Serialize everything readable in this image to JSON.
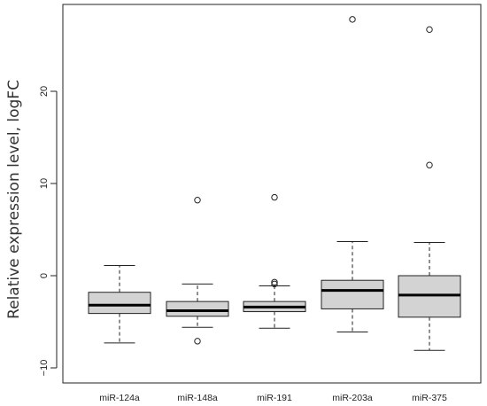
{
  "chart_data": {
    "type": "boxplot",
    "title": "",
    "xlabel": "",
    "ylabel": "Relative expression level, logFC",
    "ylim": [
      -11,
      29
    ],
    "yticks": [
      -10,
      0,
      10,
      20
    ],
    "y_tick_labels": [
      "−10",
      "0",
      "10",
      "20"
    ],
    "grid": false,
    "box_color": "#d3d3d3",
    "categories": [
      "miR-124a",
      "miR-148a",
      "miR-191",
      "miR-203a",
      "miR-375"
    ],
    "series": [
      {
        "min": -7.3,
        "q1": -4.1,
        "median": -3.2,
        "q3": -1.8,
        "max": 1.1,
        "outliers": []
      },
      {
        "min": -5.6,
        "q1": -4.4,
        "median": -3.8,
        "q3": -2.8,
        "max": -0.9,
        "outliers": [
          8.2,
          -7.1
        ]
      },
      {
        "min": -5.7,
        "q1": -3.9,
        "median": -3.4,
        "q3": -2.8,
        "max": -1.1,
        "outliers": [
          8.5,
          -0.7,
          -0.9
        ]
      },
      {
        "min": -6.1,
        "q1": -3.6,
        "median": -1.6,
        "q3": -0.5,
        "max": 3.7,
        "outliers": [
          27.8
        ]
      },
      {
        "min": -8.1,
        "q1": -4.5,
        "median": -2.1,
        "q3": 0.0,
        "max": 3.6,
        "outliers": [
          26.7,
          12.0
        ]
      }
    ]
  }
}
